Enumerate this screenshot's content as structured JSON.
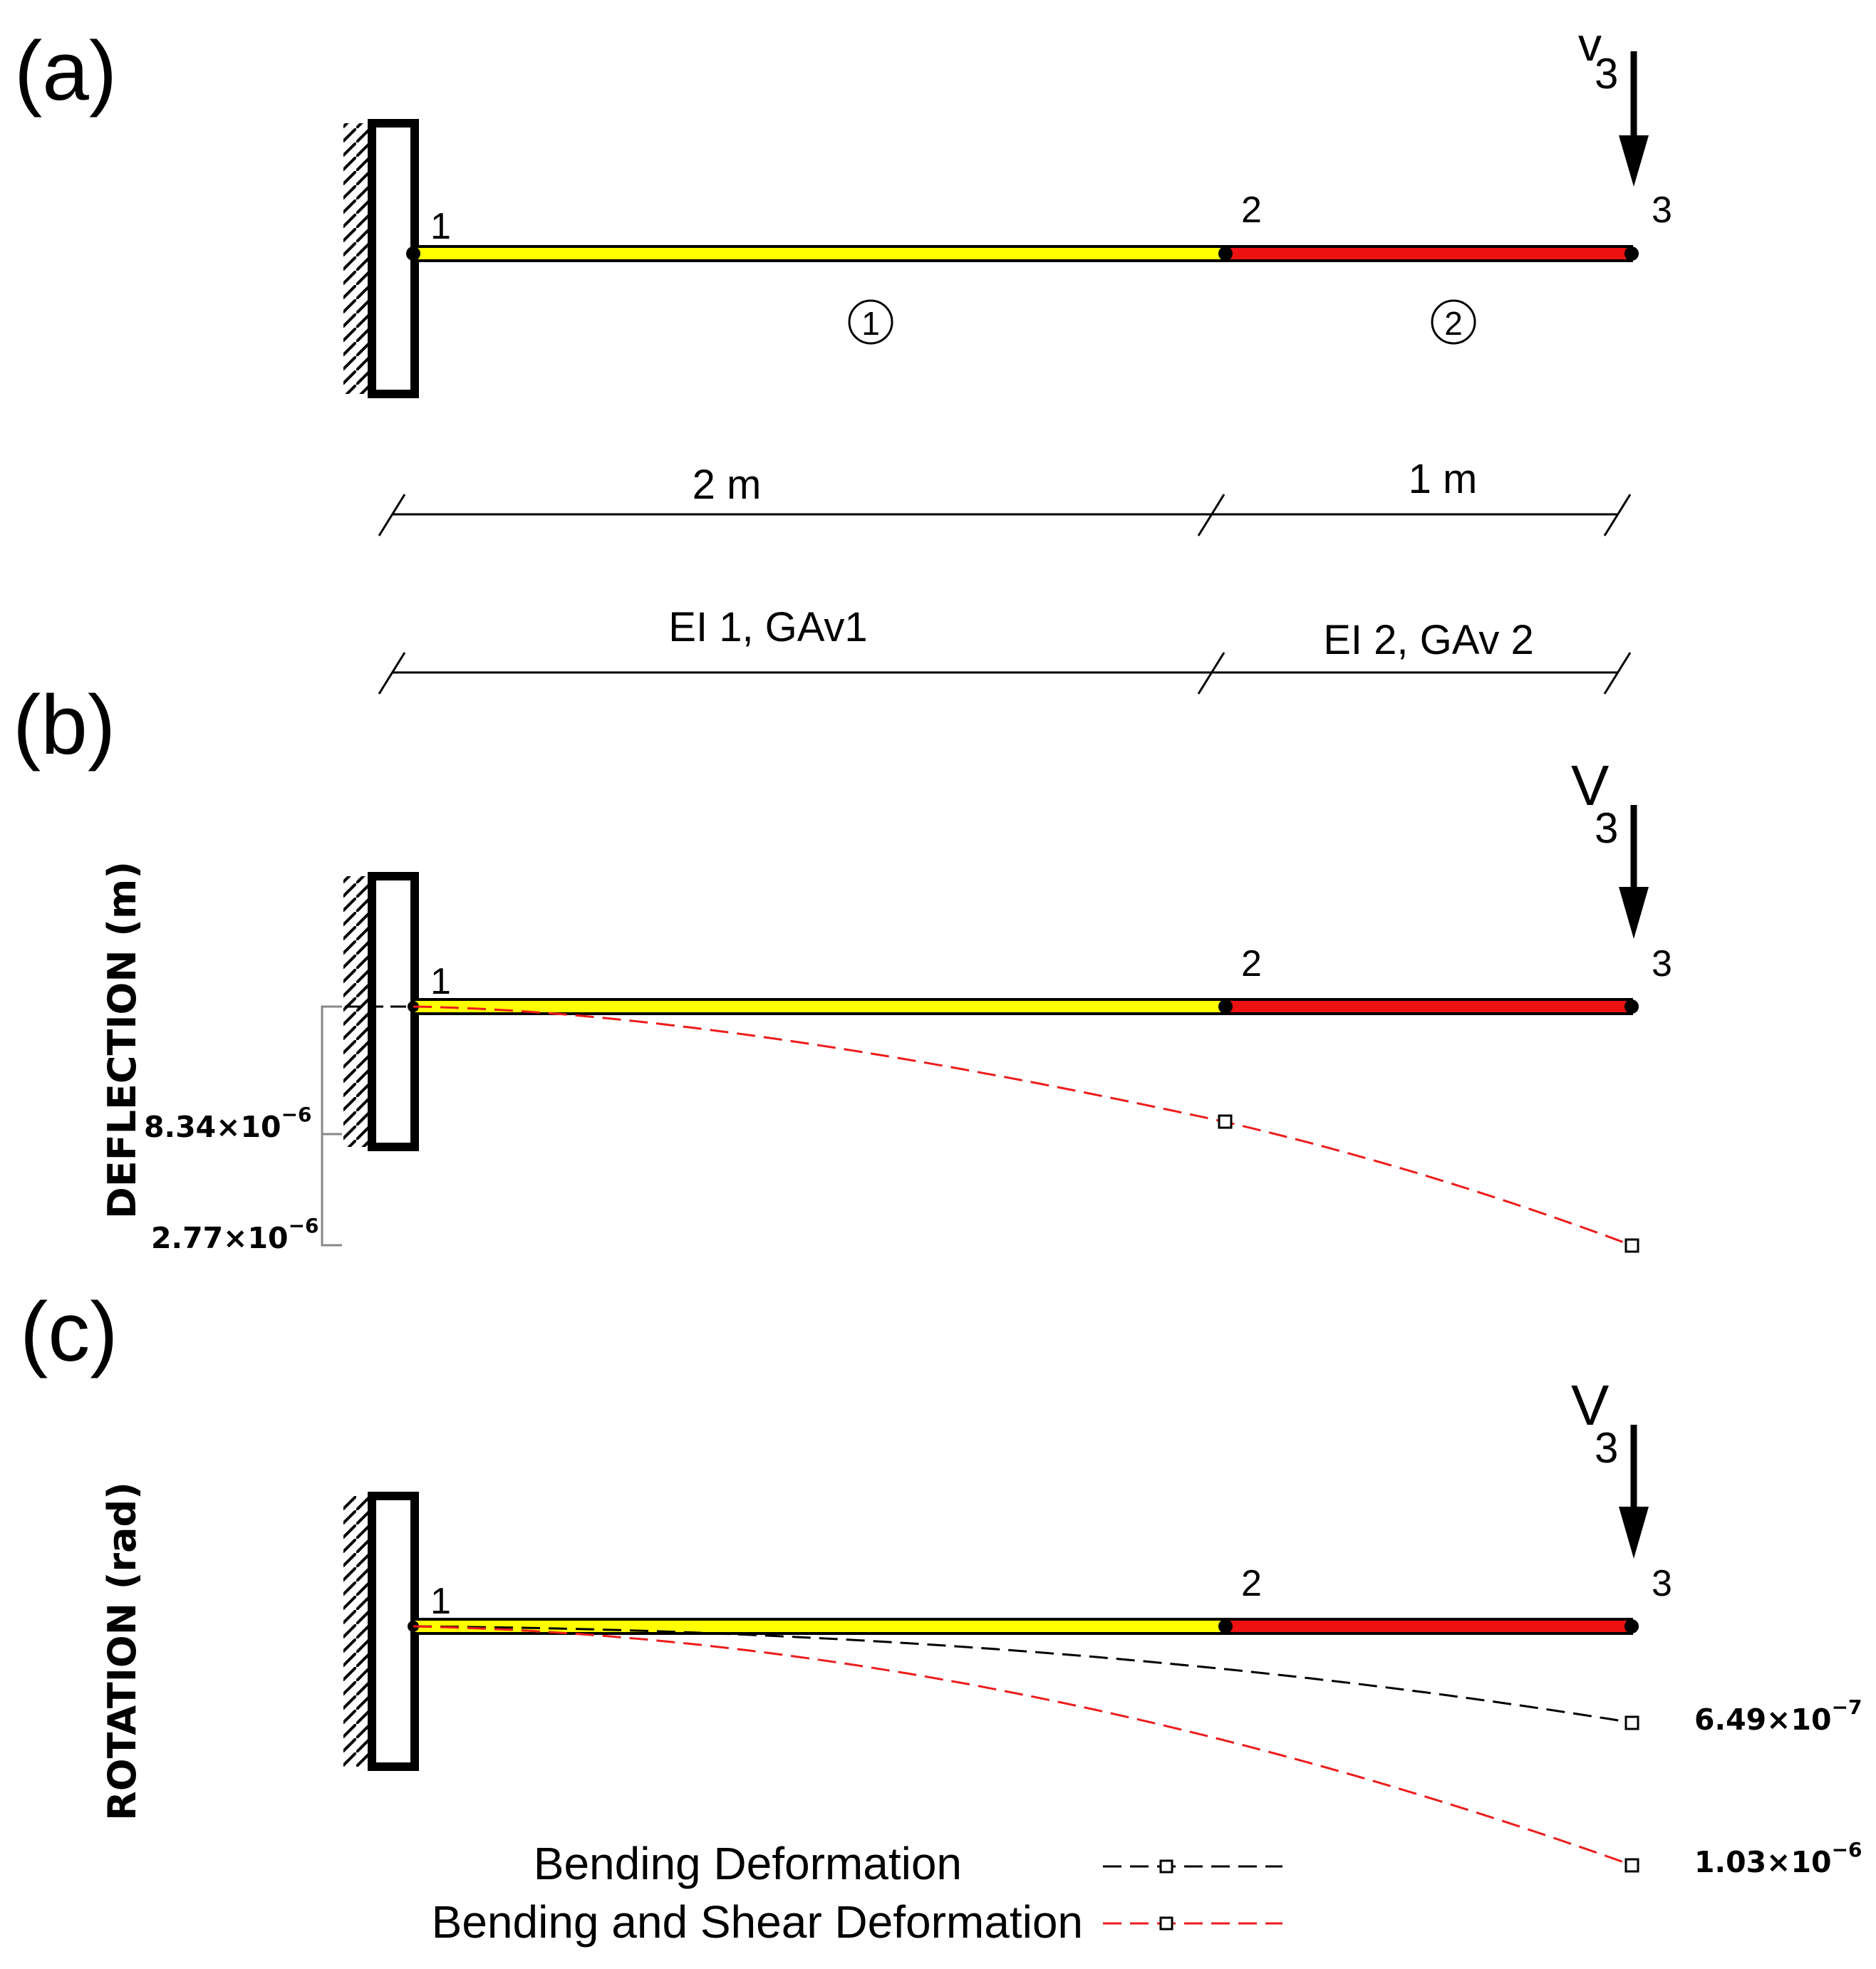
{
  "panels": [
    {
      "id": "a",
      "label": "(a)",
      "load": {
        "symbol": "v",
        "subscript": "3"
      },
      "nodes": [
        "1",
        "2",
        "3"
      ],
      "elements": [
        "1",
        "2"
      ],
      "spans": [
        "2 m",
        "1 m"
      ],
      "properties": [
        "EI 1, GAv1",
        "EI 2, GAv 2"
      ]
    },
    {
      "id": "b",
      "label": "(b)",
      "axis_label": "DEFLECTION (m)",
      "load": {
        "symbol": "V",
        "subscript": "3"
      },
      "nodes": [
        "1",
        "2",
        "3"
      ],
      "annotations": [
        {
          "base": "8.34×10",
          "exponent": "−6"
        },
        {
          "base": "2.77×10",
          "exponent": "−6"
        }
      ]
    },
    {
      "id": "c",
      "label": "(c)",
      "axis_label": "ROTATION (rad)",
      "load": {
        "symbol": "V",
        "subscript": "3"
      },
      "nodes": [
        "1",
        "2",
        "3"
      ],
      "annotations": [
        {
          "base": "6.49×10",
          "exponent": "−7"
        },
        {
          "base": "1.03×10",
          "exponent": "−6"
        }
      ]
    }
  ],
  "legend": [
    {
      "label": "Bending Deformation",
      "color": "#000000"
    },
    {
      "label": "Bending and Shear Deformation",
      "color": "#ee1c1c"
    }
  ],
  "colors": {
    "element_1": "#ffff00",
    "element_2": "#ee1111",
    "bending": "#000000",
    "shear": "#ee1c1c"
  }
}
